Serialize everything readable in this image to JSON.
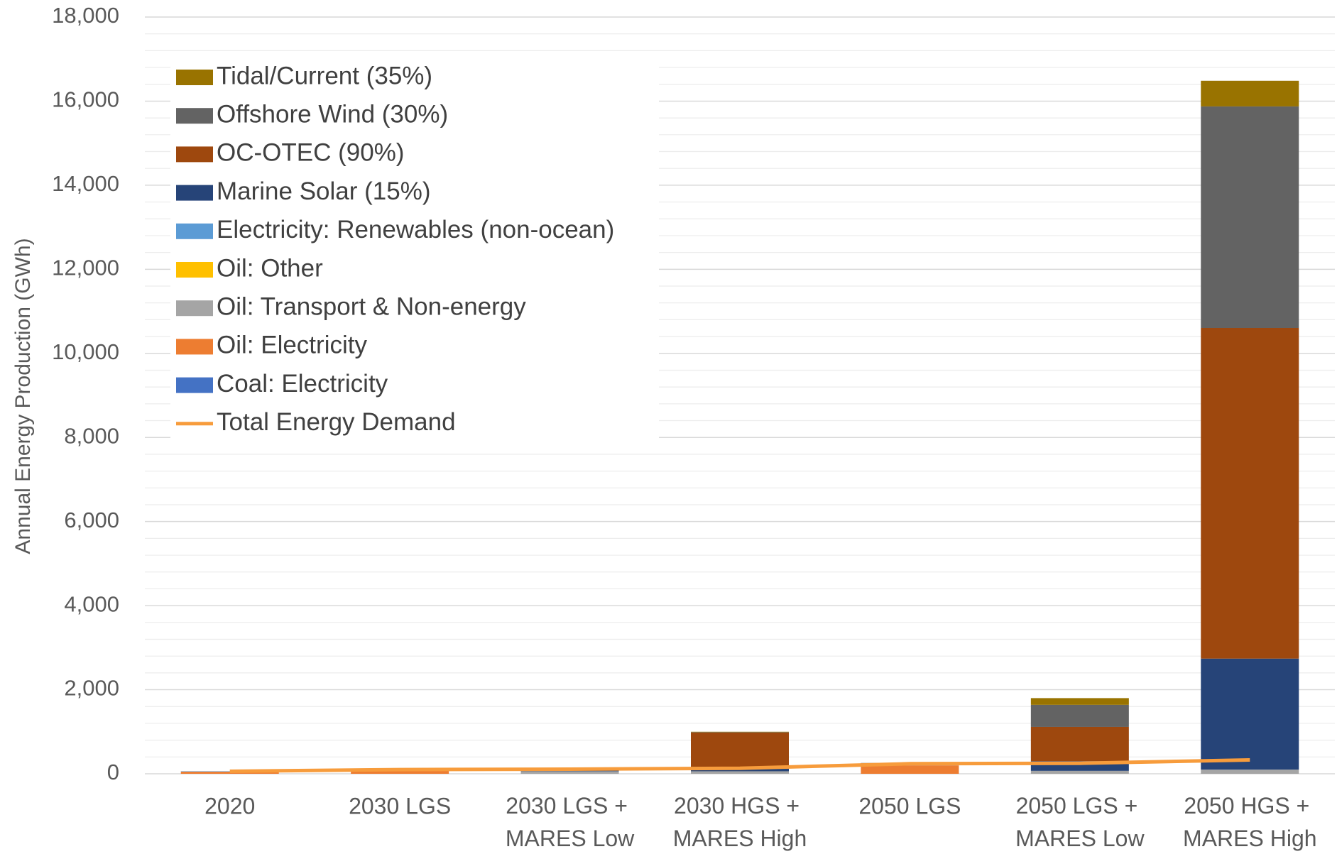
{
  "chart_data": {
    "type": "stacked_bar",
    "y_label": "Annual Energy Production (GWh)",
    "categories": [
      "2020",
      "2030 LGS",
      "2030 LGS + MARES Low",
      "2030 HGS + MARES High",
      "2050 LGS",
      "2050 LGS + MARES Low",
      "2050 HGS + MARES High"
    ],
    "series": [
      {
        "name": "Coal: Electricity",
        "color": "#4472c4",
        "values": [
          0,
          0,
          0,
          0,
          0,
          0,
          0
        ]
      },
      {
        "name": "Oil: Electricity",
        "color": "#ed7d31",
        "values": [
          50,
          100,
          0,
          0,
          200,
          0,
          0
        ]
      },
      {
        "name": "Oil: Transport & Non-energy",
        "color": "#a5a5a5",
        "values": [
          0,
          0,
          60,
          60,
          60,
          70,
          100
        ]
      },
      {
        "name": "Oil: Other",
        "color": "#ffc000",
        "values": [
          0,
          0,
          0,
          0,
          0,
          0,
          0
        ]
      },
      {
        "name": "Electricity: Renewables (non-ocean)",
        "color": "#5b9bd5",
        "values": [
          10,
          0,
          0,
          0,
          0,
          0,
          0
        ]
      },
      {
        "name": "Marine Solar (15%)",
        "color": "#264478",
        "values": [
          0,
          0,
          30,
          60,
          0,
          230,
          2640
        ]
      },
      {
        "name": "OC-OTEC (90%)",
        "color": "#9e480e",
        "values": [
          0,
          0,
          30,
          860,
          0,
          815,
          7864
        ]
      },
      {
        "name": "Offshore Wind (30%)",
        "color": "#636363",
        "values": [
          0,
          0,
          0,
          10,
          0,
          525,
          5270
        ]
      },
      {
        "name": "Tidal/Current (35%)",
        "color": "#997300",
        "values": [
          0,
          0,
          0,
          10,
          0,
          160,
          610
        ]
      },
      {
        "name": "Total Energy Demand",
        "type": "line",
        "color": "#f79c3c",
        "values": [
          60,
          100,
          110,
          130,
          240,
          250,
          330
        ]
      }
    ],
    "ylim": [
      0,
      18000
    ],
    "yticks": [
      {
        "value": 0,
        "label": "0"
      },
      {
        "value": 2000,
        "label": "2,000"
      },
      {
        "value": 4000,
        "label": "4,000"
      },
      {
        "value": 6000,
        "label": "6,000"
      },
      {
        "value": 8000,
        "label": "8,000"
      },
      {
        "value": 10000,
        "label": "10,000"
      },
      {
        "value": 12000,
        "label": "12,000"
      },
      {
        "value": 14000,
        "label": "14,000"
      },
      {
        "value": 16000,
        "label": "16,000"
      },
      {
        "value": 18000,
        "label": "18,000"
      }
    ],
    "grid": true,
    "legend": "upper left"
  }
}
